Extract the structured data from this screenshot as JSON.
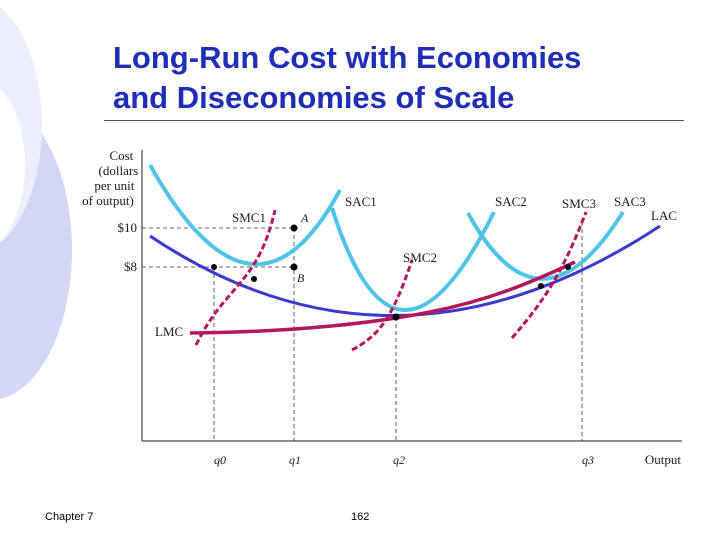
{
  "slide": {
    "title_line1": "Long-Run Cost with Economies",
    "title_line2": "and Diseconomies of Scale",
    "chapter": "Chapter 7",
    "page_number": "162"
  },
  "diagram": {
    "y_axis_label": [
      "Cost",
      "(dollars",
      "per unit",
      "of output)"
    ],
    "x_axis_label": "Output",
    "y_ticks": [
      "$10",
      "$8"
    ],
    "x_ticks": [
      "q0",
      "q1",
      "q2",
      "q3"
    ],
    "curve_labels": {
      "sac1": "SAC1",
      "sac2": "SAC2",
      "sac3": "SAC3",
      "smc1": "SMC1",
      "smc2": "SMC2",
      "smc3": "SMC3",
      "lac": "LAC",
      "lmc": "LMC"
    },
    "points": {
      "a": "A",
      "b": "B"
    },
    "colors": {
      "sac": "#4fc3e8",
      "lac": "#3a3acc",
      "lmc": "#b3165c",
      "smc": "#b3165c",
      "title": "#1f2eb8",
      "deco": "#c8cbf0"
    }
  }
}
